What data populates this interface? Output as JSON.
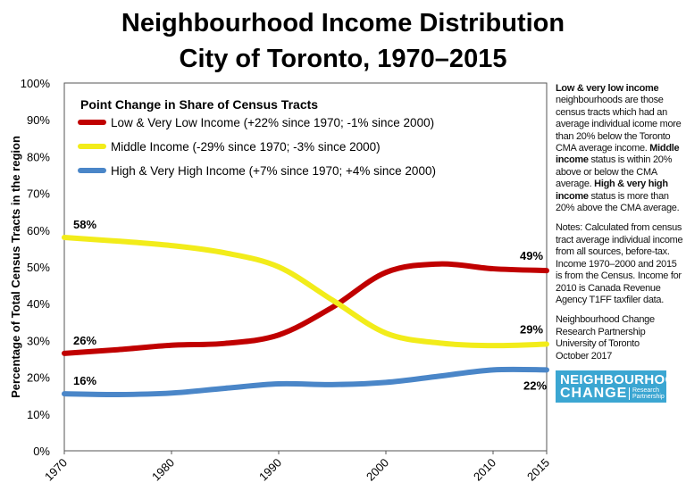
{
  "title": "Neighbourhood Income Distribution",
  "subtitle": "City of Toronto, 1970–2015",
  "side_note": {
    "p1": [
      {
        "b": "Low & very low income"
      },
      {
        "t": " neighbourhoods are those census tracts which had an average individual icome more than 20% below the Toronto CMA average income. "
      },
      {
        "b": "Middle income"
      },
      {
        "t": " status is within 20% above or below the CMA average. "
      },
      {
        "b": "High & very high income"
      },
      {
        "t": " status is more than 20% above the CMA average."
      }
    ],
    "notes": "Notes: Calculated from census tract average individual income from all sources, before-tax. Income 1970–2000 and 2015 is from the Census. Income for 2010 is Canada Revenue Agency T1FF taxfiler data.",
    "credit": [
      "Neighbourhood Change",
      "Research Partnership",
      "University of Toronto",
      "October 2017"
    ]
  },
  "logo": {
    "line1": "NEIGHBOURHOOD",
    "line2": "CHANGE",
    "line3": "Research",
    "line4": "Partnership",
    "color": "#3ba6d2"
  },
  "chart_data": {
    "type": "line",
    "ylabel": "Percentage of Total Census Tracts in the region",
    "xlabel": "",
    "xlim": [
      1970,
      2015
    ],
    "ylim": [
      0,
      100
    ],
    "xticks": [
      1970,
      1980,
      1990,
      2000,
      2010,
      2015
    ],
    "yticks": [
      "0%",
      "10%",
      "20%",
      "30%",
      "40%",
      "50%",
      "60%",
      "70%",
      "80%",
      "90%",
      "100%"
    ],
    "legend_title": "Point Change in Share of Census Tracts",
    "legend_position": "top-left",
    "x": [
      1970,
      1975,
      1980,
      1985,
      1990,
      1995,
      2000,
      2005,
      2010,
      2015
    ],
    "series": [
      {
        "name": "Low & Very Low Income (+22% since 1970; -1% since 2000)",
        "color": "#c00000",
        "values": [
          26.5,
          27.5,
          28.7,
          29.2,
          31.5,
          39,
          48.5,
          50.8,
          49.5,
          49
        ],
        "start_label": "26%",
        "end_label": "49%"
      },
      {
        "name": "Middle Income (-29% since 1970; -3% since 2000)",
        "color": "#f2ec1a",
        "values": [
          58,
          57,
          55.8,
          53.8,
          50,
          41,
          32,
          29.3,
          28.6,
          29
        ],
        "start_label": "58%",
        "end_label": "29%"
      },
      {
        "name": "High & Very High Income (+7% since 1970; +4% since 2000)",
        "color": "#4a86c8",
        "values": [
          15.5,
          15.3,
          15.7,
          17,
          18.2,
          18,
          18.6,
          20.3,
          22,
          22
        ],
        "start_label": "16%",
        "end_label": "22%"
      }
    ],
    "grid": false
  }
}
